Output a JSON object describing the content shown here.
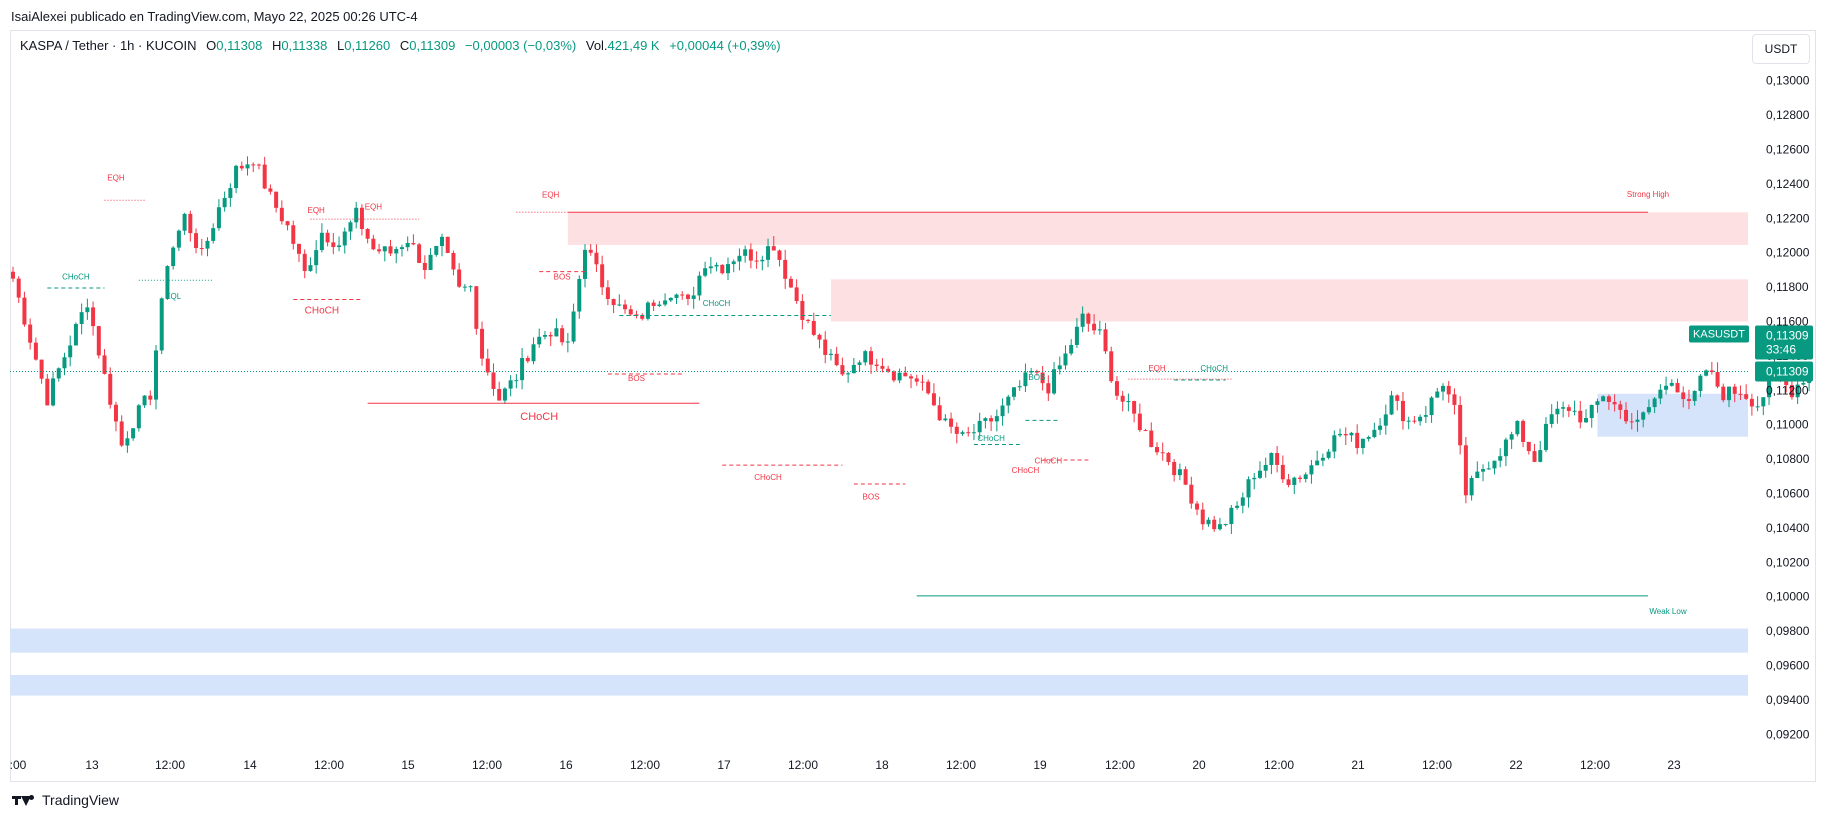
{
  "publisher_line": "IsaiAlexei publicado en TradingView.com, Mayo 22, 2025 00:26 UTC-4",
  "legend": {
    "symbol": "KASPA / Tether · 1h · KUCOIN",
    "o_label": "O",
    "o_value": "0,11308",
    "h_label": "H",
    "h_value": "0,11338",
    "l_label": "L",
    "l_value": "0,11260",
    "c_label": "C",
    "c_value": "0,11309",
    "change": "−0,00003 (−0,03%)",
    "vol_label": "Vol.",
    "vol_value": "421,49 K",
    "vol_change": "+0,00044 (+0,39%)"
  },
  "currency_button": "USDT",
  "brand": "TradingView",
  "colors": {
    "up": "#089981",
    "down": "#f23645",
    "supply_zone": "#fde0e2",
    "demand_zone": "#d6e4fb",
    "axis_text": "#131722"
  },
  "chart_data": {
    "type": "candlestick",
    "symbol": "KASUSDT",
    "interval": "1h",
    "y_ticks": [
      "0,13000",
      "0,12800",
      "0,12600",
      "0,12400",
      "0,12200",
      "0,12000",
      "0,11800",
      "0,11600",
      "0,11400",
      "0,11200",
      "0,11000",
      "0,10800",
      "0,10600",
      "0,10400",
      "0,10200",
      "0,10000",
      "0,09800",
      "0,09600",
      "0,09400",
      "0,09200"
    ],
    "y_range": [
      0.0908,
      0.1312
    ],
    "x_ticks": [
      ":00",
      "13",
      "12:00",
      "14",
      "12:00",
      "15",
      "12:00",
      "16",
      "12:00",
      "17",
      "12:00",
      "18",
      "12:00",
      "19",
      "12:00",
      "20",
      "12:00",
      "21",
      "12:00",
      "22",
      "12:00",
      "23"
    ],
    "last_price": {
      "symbol": "KASUSDT",
      "price": "0,11309",
      "countdown": "33:46",
      "value": 0.11309
    },
    "path": [
      [
        0,
        0.1185
      ],
      [
        6,
        0.1115
      ],
      [
        8,
        0.1132
      ],
      [
        13,
        0.1172
      ],
      [
        16,
        0.1128
      ],
      [
        19,
        0.1088
      ],
      [
        21,
        0.1102
      ],
      [
        24,
        0.1118
      ],
      [
        27,
        0.1195
      ],
      [
        30,
        0.1221
      ],
      [
        33,
        0.1198
      ],
      [
        36,
        0.1226
      ],
      [
        39,
        0.1248
      ],
      [
        42,
        0.1255
      ],
      [
        45,
        0.1232
      ],
      [
        48,
        0.1215
      ],
      [
        51,
        0.1188
      ],
      [
        54,
        0.1212
      ],
      [
        57,
        0.1205
      ],
      [
        60,
        0.1222
      ],
      [
        63,
        0.1202
      ],
      [
        66,
        0.12
      ],
      [
        69,
        0.1208
      ],
      [
        72,
        0.1192
      ],
      [
        75,
        0.1205
      ],
      [
        78,
        0.1178
      ],
      [
        80,
        0.118
      ],
      [
        82,
        0.114
      ],
      [
        85,
        0.1115
      ],
      [
        88,
        0.1128
      ],
      [
        91,
        0.1148
      ],
      [
        94,
        0.1155
      ],
      [
        97,
        0.1145
      ],
      [
        100,
        0.1205
      ],
      [
        103,
        0.1182
      ],
      [
        106,
        0.1168
      ],
      [
        109,
        0.116
      ],
      [
        112,
        0.1172
      ],
      [
        115,
        0.1178
      ],
      [
        118,
        0.117
      ],
      [
        121,
        0.1195
      ],
      [
        124,
        0.1192
      ],
      [
        127,
        0.12
      ],
      [
        130,
        0.1198
      ],
      [
        133,
        0.1205
      ],
      [
        136,
        0.118
      ],
      [
        139,
        0.1158
      ],
      [
        142,
        0.1142
      ],
      [
        145,
        0.1128
      ],
      [
        148,
        0.114
      ],
      [
        151,
        0.1138
      ],
      [
        154,
        0.113
      ],
      [
        157,
        0.1128
      ],
      [
        160,
        0.1118
      ],
      [
        163,
        0.11
      ],
      [
        166,
        0.1092
      ],
      [
        169,
        0.1098
      ],
      [
        172,
        0.1105
      ],
      [
        175,
        0.1118
      ],
      [
        178,
        0.113
      ],
      [
        181,
        0.1122
      ],
      [
        184,
        0.114
      ],
      [
        187,
        0.1162
      ],
      [
        190,
        0.1152
      ],
      [
        193,
        0.1118
      ],
      [
        196,
        0.1105
      ],
      [
        199,
        0.109
      ],
      [
        202,
        0.108
      ],
      [
        205,
        0.1065
      ],
      [
        208,
        0.1045
      ],
      [
        211,
        0.104
      ],
      [
        214,
        0.1052
      ],
      [
        217,
        0.1072
      ],
      [
        220,
        0.108
      ],
      [
        223,
        0.1068
      ],
      [
        226,
        0.1072
      ],
      [
        229,
        0.1085
      ],
      [
        232,
        0.1095
      ],
      [
        235,
        0.109
      ],
      [
        238,
        0.1098
      ],
      [
        241,
        0.1115
      ],
      [
        244,
        0.1102
      ],
      [
        247,
        0.1108
      ],
      [
        250,
        0.1125
      ],
      [
        252,
        0.1108
      ],
      [
        254,
        0.106
      ],
      [
        257,
        0.1075
      ],
      [
        260,
        0.1085
      ],
      [
        263,
        0.1098
      ],
      [
        266,
        0.108
      ],
      [
        269,
        0.1105
      ],
      [
        272,
        0.111
      ],
      [
        275,
        0.1102
      ],
      [
        278,
        0.1118
      ],
      [
        281,
        0.1108
      ],
      [
        284,
        0.11
      ],
      [
        287,
        0.1115
      ],
      [
        290,
        0.1128
      ],
      [
        293,
        0.111
      ],
      [
        296,
        0.1132
      ],
      [
        299,
        0.1118
      ],
      [
        302,
        0.112
      ],
      [
        305,
        0.1112
      ],
      [
        308,
        0.1128
      ],
      [
        311,
        0.112
      ],
      [
        314,
        0.1131
      ]
    ],
    "annotations": [
      {
        "text": "EQH",
        "color": "#f23645"
      },
      {
        "text": "EQH",
        "color": "#f23645"
      },
      {
        "text": "EQH",
        "color": "#f23645"
      },
      {
        "text": "EQH",
        "color": "#f23645"
      },
      {
        "text": "EQH",
        "color": "#f23645"
      },
      {
        "text": "EQL",
        "color": "#089981"
      },
      {
        "text": "CHoCH",
        "color": "#089981"
      },
      {
        "text": "CHoCH",
        "color": "#f23645"
      },
      {
        "text": "CHoCH",
        "color": "#f23645"
      },
      {
        "text": "CHoCH",
        "color": "#089981"
      },
      {
        "text": "CHoCH",
        "color": "#f23645"
      },
      {
        "text": "CHoCH",
        "color": "#089981"
      },
      {
        "text": "CHoCH",
        "color": "#f23645"
      },
      {
        "text": "CHoCH",
        "color": "#089981"
      },
      {
        "text": "BOS",
        "color": "#f23645"
      },
      {
        "text": "BOS",
        "color": "#f23645"
      },
      {
        "text": "BOS",
        "color": "#f23645"
      },
      {
        "text": "BOS",
        "color": "#089981"
      },
      {
        "text": "Strong High",
        "color": "#f23645"
      },
      {
        "text": "Weak Low",
        "color": "#089981"
      }
    ]
  }
}
